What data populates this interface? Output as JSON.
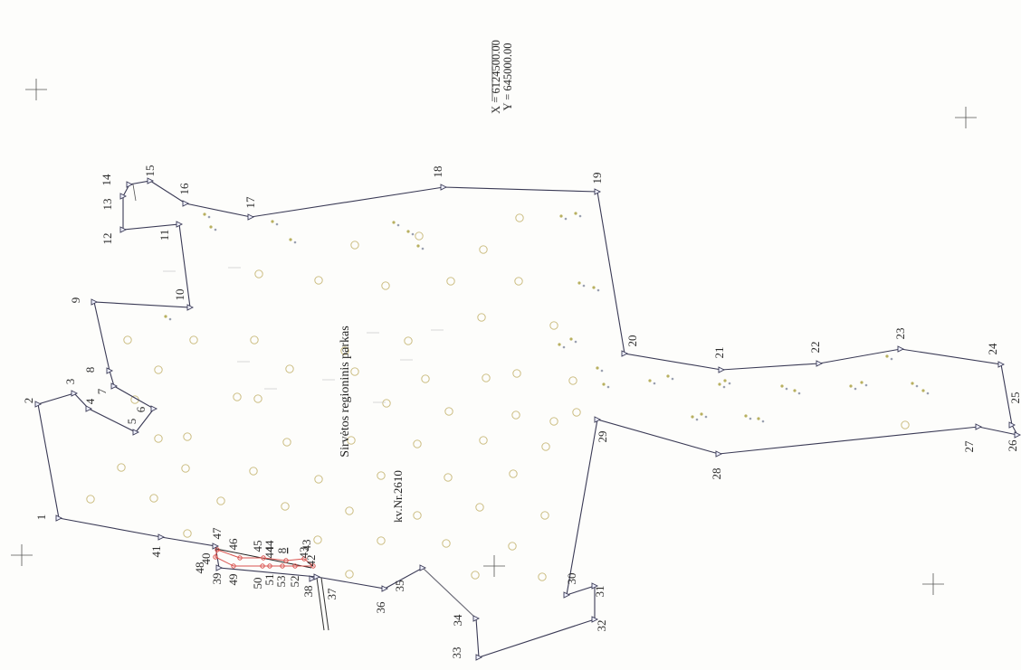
{
  "coordinates": {
    "x_label": "X = 6124500.00",
    "y_label": "Y = 645000.00"
  },
  "labels": {
    "park_name": "Sirvėtos regioninis parkas",
    "parcel": "kv.Nr.2610"
  },
  "points": [
    {
      "id": "1",
      "label": "1"
    },
    {
      "id": "2",
      "label": "2"
    },
    {
      "id": "3",
      "label": "3"
    },
    {
      "id": "4",
      "label": "4"
    },
    {
      "id": "5",
      "label": "5"
    },
    {
      "id": "6",
      "label": "6"
    },
    {
      "id": "7",
      "label": "7"
    },
    {
      "id": "8",
      "label": "8"
    },
    {
      "id": "9",
      "label": "9"
    },
    {
      "id": "10",
      "label": "10"
    },
    {
      "id": "11",
      "label": "11"
    },
    {
      "id": "12",
      "label": "12"
    },
    {
      "id": "13",
      "label": "13"
    },
    {
      "id": "14",
      "label": "14"
    },
    {
      "id": "15",
      "label": "15"
    },
    {
      "id": "16",
      "label": "16"
    },
    {
      "id": "17",
      "label": "17"
    },
    {
      "id": "18",
      "label": "18"
    },
    {
      "id": "19",
      "label": "19"
    },
    {
      "id": "20",
      "label": "20"
    },
    {
      "id": "21",
      "label": "21"
    },
    {
      "id": "22",
      "label": "22"
    },
    {
      "id": "23",
      "label": "23"
    },
    {
      "id": "24",
      "label": "24"
    },
    {
      "id": "25",
      "label": "25"
    },
    {
      "id": "26",
      "label": "26"
    },
    {
      "id": "27",
      "label": "27"
    },
    {
      "id": "28",
      "label": "28"
    },
    {
      "id": "29",
      "label": "29"
    },
    {
      "id": "30",
      "label": "30"
    },
    {
      "id": "31",
      "label": "31"
    },
    {
      "id": "32",
      "label": "32"
    },
    {
      "id": "33",
      "label": "33"
    },
    {
      "id": "34",
      "label": "34"
    },
    {
      "id": "35",
      "label": "35"
    },
    {
      "id": "36",
      "label": "36"
    },
    {
      "id": "37",
      "label": "37"
    },
    {
      "id": "38",
      "label": "38"
    },
    {
      "id": "39",
      "label": "39"
    },
    {
      "id": "40",
      "label": "40"
    },
    {
      "id": "41",
      "label": "41"
    },
    {
      "id": "42",
      "label": "42"
    },
    {
      "id": "43",
      "label": "43"
    },
    {
      "id": "44",
      "label": "44"
    },
    {
      "id": "45",
      "label": "45"
    },
    {
      "id": "46",
      "label": "46"
    },
    {
      "id": "47",
      "label": "47"
    },
    {
      "id": "48",
      "label": "48"
    },
    {
      "id": "49",
      "label": "49"
    },
    {
      "id": "50",
      "label": "50"
    },
    {
      "id": "51",
      "label": "51"
    },
    {
      "id": "52",
      "label": "52"
    },
    {
      "id": "53",
      "label": "53"
    },
    {
      "id": "8b",
      "label": "8"
    },
    {
      "id": "43b",
      "label": "43"
    },
    {
      "id": "44b",
      "label": "44"
    }
  ],
  "colors": {
    "boundary": "#3a3a55",
    "inner_ring": "#d9534f",
    "tree_marker": "#c8b878",
    "cross": "#555555",
    "blue_label": "#2a5db0"
  }
}
